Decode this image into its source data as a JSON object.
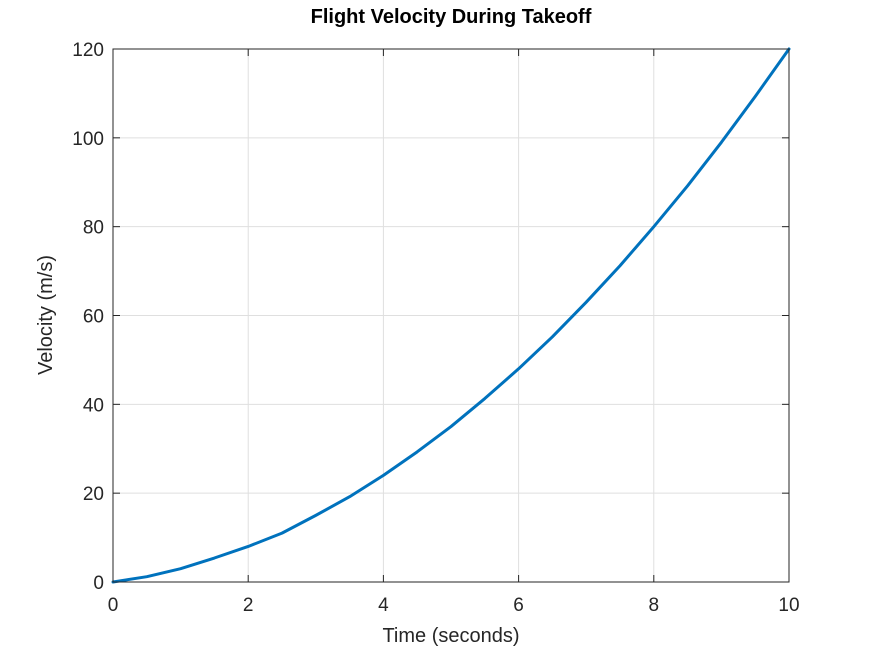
{
  "chart_data": {
    "type": "line",
    "title": "Flight Velocity During Takeoff",
    "xlabel": "Time (seconds)",
    "ylabel": "Velocity (m/s)",
    "xlim": [
      0,
      10
    ],
    "ylim": [
      0,
      120
    ],
    "xticks": [
      0,
      2,
      4,
      6,
      8,
      10
    ],
    "yticks": [
      0,
      20,
      40,
      60,
      80,
      100,
      120
    ],
    "grid": true,
    "legend": "none",
    "series": [
      {
        "color": "#0072bd",
        "x": [
          0,
          0.5,
          1,
          1.5,
          2,
          2.5,
          3,
          3.5,
          4,
          4.5,
          5,
          5.5,
          6,
          6.5,
          7,
          7.5,
          8,
          8.5,
          9,
          9.5,
          10
        ],
        "y": [
          0,
          1.2,
          3,
          5.4,
          8,
          11,
          15,
          19.2,
          24,
          29.3,
          35,
          41.3,
          48,
          55.2,
          63,
          71.2,
          80,
          89.2,
          99,
          109.3,
          120
        ]
      }
    ]
  }
}
